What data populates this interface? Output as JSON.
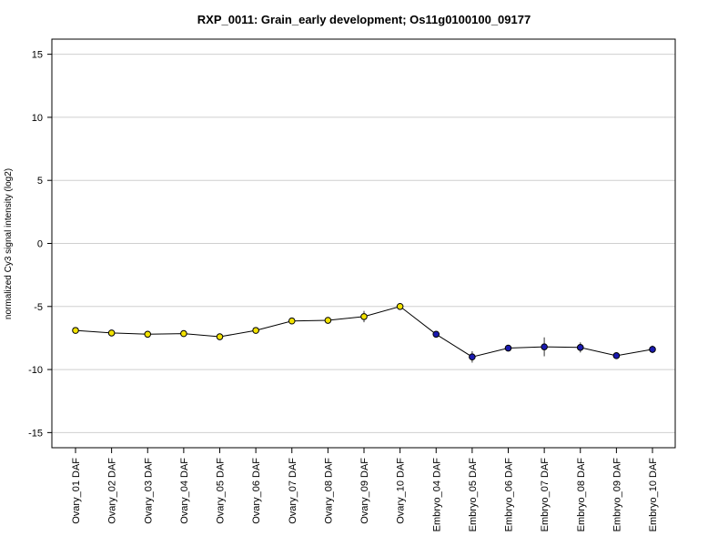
{
  "chart_data": {
    "type": "line",
    "title": "RXP_0011: Grain_early development; Os11g0100100_09177",
    "xlabel": "",
    "ylabel": "normalized Cy3 signal intensity (log2)",
    "ylim": [
      -16.2,
      16.2
    ],
    "yticks": [
      15,
      10,
      5,
      0,
      -5,
      -10,
      -15
    ],
    "ytick_labels": [
      "15",
      "10",
      "5",
      "0",
      "-5",
      "-10",
      "-15"
    ],
    "grid": true,
    "categories": [
      "Ovary_01 DAF",
      "Ovary_02 DAF",
      "Ovary_03 DAF",
      "Ovary_04 DAF",
      "Ovary_05 DAF",
      "Ovary_06 DAF",
      "Ovary_07 DAF",
      "Ovary_08 DAF",
      "Ovary_09 DAF",
      "Ovary_10 DAF",
      "Embryo_04 DAF",
      "Embryo_05 DAF",
      "Embryo_06 DAF",
      "Embryo_07 DAF",
      "Embryo_08 DAF",
      "Embryo_09 DAF",
      "Embryo_10 DAF"
    ],
    "values": [
      -6.9,
      -7.1,
      -7.2,
      -7.15,
      -7.4,
      -6.9,
      -6.15,
      -6.1,
      -5.8,
      -5.0,
      -7.2,
      -9.0,
      -8.3,
      -8.2,
      -8.25,
      -8.9,
      -8.4
    ],
    "errors": [
      0.1,
      0.1,
      0.25,
      0.15,
      0.15,
      0.1,
      0.15,
      0.15,
      0.45,
      0.15,
      0.2,
      0.45,
      0.2,
      0.75,
      0.4,
      0.2,
      0.3
    ],
    "point_colors": [
      "#f2e200",
      "#f2e200",
      "#f2e200",
      "#f2e200",
      "#f2e200",
      "#f2e200",
      "#f2e200",
      "#f2e200",
      "#f2e200",
      "#f2e200",
      "#1a1ab0",
      "#1a1ab0",
      "#1a1ab0",
      "#1a1ab0",
      "#1a1ab0",
      "#1a1ab0",
      "#1a1ab0"
    ],
    "colors": {
      "ovary": "#f2e200",
      "embryo": "#1a1ab0",
      "line": "#000000",
      "grid": "#cfcfcf"
    }
  }
}
